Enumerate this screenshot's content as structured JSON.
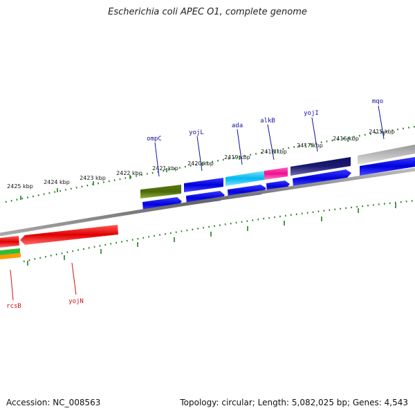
{
  "title": "Escherichia coli APEC O1, complete genome",
  "accession": "Accession: NC_008563",
  "summary": "Topology: circular; Length: 5,082,025 bp; Genes: 4,543",
  "colors": {
    "backbone": "#777777",
    "tick": "#1f7a1f",
    "forward_label": "#1010a0",
    "reverse_label": "#cc1010"
  },
  "ticks": [
    "2415 kbp",
    "2416 kbp",
    "2417 kbp",
    "2418 kbp",
    "2419 kbp",
    "2420 kbp",
    "2421 kbp",
    "2422 kbp",
    "2423 kbp",
    "2424 kbp",
    "2425 kbp"
  ],
  "forward_labels": [
    "mqo",
    "yojI",
    "alkB",
    "ada",
    "yojL",
    "ompC"
  ],
  "reverse_labels": [
    "rcsB",
    "yojN"
  ]
}
